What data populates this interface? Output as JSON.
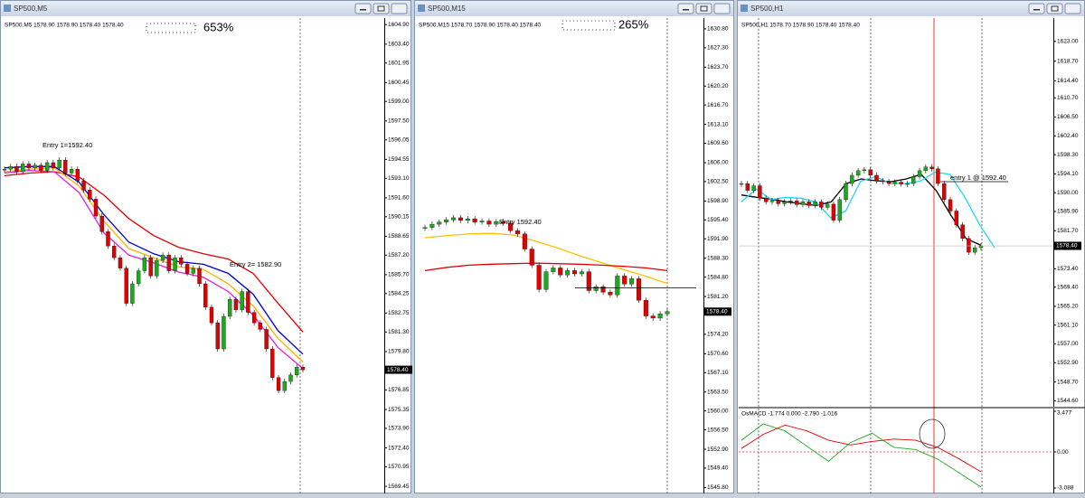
{
  "windows": [
    {
      "title": "SP500,M5",
      "info": "SP500,M5  1578.90 1578.90 1578.40 1578.40",
      "percent": "653%",
      "annotations": [
        "Entry 1=1592.40",
        "Entry 2= 1582.90"
      ],
      "chart": {
        "type": "candlestick",
        "ylim": [
          1568.9,
          1605.4
        ],
        "yticks": [
          {
            "value": 1604.9,
            "label": "1604.90"
          },
          {
            "value": 1603.4,
            "label": "1603.40"
          },
          1601.95,
          1600.45,
          {
            "value": 1599,
            "label": "1599.00"
          },
          {
            "value": 1597.5,
            "label": "1597.50"
          },
          1596.05,
          1594.55,
          {
            "value": 1593.1,
            "label": "1593.10"
          },
          {
            "value": 1591.6,
            "label": "1591.60"
          },
          1590.15,
          1588.65,
          {
            "value": 1587.2,
            "label": "1587.20"
          },
          {
            "value": 1585.7,
            "label": "1585.70"
          },
          1584.25,
          1582.75,
          {
            "value": 1581.3,
            "label": "1581.30"
          },
          {
            "value": 1579.8,
            "label": "1579.80"
          },
          1576.85,
          1575.35,
          {
            "value": 1573.9,
            "label": "1573.90"
          },
          {
            "value": 1572.4,
            "label": "1572.40"
          },
          1570.95,
          1569.45
        ],
        "current": {
          "value": 1578.4,
          "label": "1578.40"
        },
        "closes": [
          1593.8,
          1594.0,
          1593.6,
          1594.2,
          1593.9,
          1594.1,
          1593.7,
          1594.3,
          1593.9,
          1594.5,
          1593.5,
          1593.8,
          1592.9,
          1592.2,
          1591.5,
          1590.2,
          1589.0,
          1587.9,
          1587.0,
          1586.2,
          1583.5,
          1585.0,
          1586.0,
          1587.0,
          1585.6,
          1586.8,
          1587.2,
          1586.0,
          1587.0,
          1586.5,
          1585.8,
          1586.2,
          1585.0,
          1583.2,
          1582.0,
          1580.0,
          1582.5,
          1583.8,
          1583.0,
          1584.4,
          1582.8,
          1582.0,
          1581.5,
          1580.0,
          1577.8,
          1576.8,
          1577.5,
          1578.0,
          1578.6,
          1578.4
        ],
        "ma": [
          {
            "color": "#e00000",
            "values": [
              1593.3,
              1593.5,
              1593.6,
              1593.2,
              1591.8,
              1590.0,
              1588.7,
              1587.8,
              1587.3,
              1586.9,
              1585.8,
              1583.5,
              1581.3
            ]
          },
          {
            "color": "#0000cc",
            "values": [
              1593.9,
              1594.0,
              1594.0,
              1592.8,
              1590.3,
              1588.2,
              1587.3,
              1586.7,
              1586.5,
              1585.8,
              1584.2,
              1581.4,
              1579.6
            ]
          },
          {
            "color": "#ffb000",
            "values": [
              1593.6,
              1593.8,
              1593.9,
              1592.5,
              1589.8,
              1587.7,
              1587.0,
              1586.3,
              1586.1,
              1585.0,
              1583.3,
              1580.8,
              1579.0
            ]
          },
          {
            "color": "#e020e0",
            "values": [
              1593.5,
              1593.7,
              1593.6,
              1592.0,
              1588.9,
              1587.2,
              1586.6,
              1585.9,
              1585.5,
              1584.4,
              1582.6,
              1580.1,
              1578.5
            ]
          }
        ]
      }
    },
    {
      "title": "SP500,M15",
      "info": "SP500,M15  1578.70 1578.90 1578.40 1578.40",
      "percent": "265%",
      "annotations": [
        "Entry 1592.40"
      ],
      "chart": {
        "type": "candlestick",
        "ylim": [
          1544.7,
          1632.8
        ],
        "yticks": [
          {
            "value": 1630.8,
            "label": "1630.80"
          },
          {
            "value": 1627.3,
            "label": "1627.30"
          },
          {
            "value": 1623.7,
            "label": "1623.70"
          },
          {
            "value": 1620.2,
            "label": "1620.20"
          },
          {
            "value": 1616.7,
            "label": "1616.70"
          },
          {
            "value": 1613.1,
            "label": "1613.10"
          },
          {
            "value": 1609.6,
            "label": "1609.60"
          },
          {
            "value": 1606,
            "label": "1606.00"
          },
          {
            "value": 1602.5,
            "label": "1602.50"
          },
          {
            "value": 1598.9,
            "label": "1598.90"
          },
          {
            "value": 1595.4,
            "label": "1595.40"
          },
          {
            "value": 1591.9,
            "label": "1591.90"
          },
          {
            "value": 1588.3,
            "label": "1588.30"
          },
          {
            "value": 1584.8,
            "label": "1584.80"
          },
          {
            "value": 1581.2,
            "label": "1581.20"
          },
          {
            "value": 1574.2,
            "label": "1574.20"
          },
          {
            "value": 1570.6,
            "label": "1570.60"
          },
          {
            "value": 1567.1,
            "label": "1567.10"
          },
          {
            "value": 1563.5,
            "label": "1563.50"
          },
          {
            "value": 1560,
            "label": "1560.00"
          },
          {
            "value": 1556.5,
            "label": "1556.50"
          },
          {
            "value": 1552.9,
            "label": "1552.90"
          },
          {
            "value": 1549.4,
            "label": "1549.40"
          },
          {
            "value": 1545.8,
            "label": "1545.80"
          }
        ],
        "current": {
          "value": 1578.4,
          "label": "1578.40"
        },
        "closes": [
          1594.0,
          1594.6,
          1595.0,
          1595.4,
          1595.8,
          1595.3,
          1595.6,
          1595.0,
          1595.2,
          1594.6,
          1595.1,
          1594.8,
          1593.4,
          1592.8,
          1590.0,
          1587.0,
          1582.5,
          1585.8,
          1586.5,
          1585.2,
          1586.0,
          1585.4,
          1585.8,
          1582.3,
          1583.0,
          1582.0,
          1581.5,
          1585.0,
          1583.5,
          1584.5,
          1580.5,
          1577.6,
          1577.2,
          1578.0,
          1578.4
        ],
        "ma": [
          {
            "color": "#ffc000",
            "values": [
              1592.1,
              1592.5,
              1592.8,
              1592.9,
              1592.6,
              1591.5,
              1590.2,
              1588.8,
              1587.5,
              1586.2,
              1585.0,
              1583.6
            ]
          },
          {
            "color": "#e00000",
            "values": [
              1586.0,
              1586.6,
              1587.0,
              1587.2,
              1587.3,
              1587.4,
              1587.3,
              1587.2,
              1587.0,
              1586.8,
              1586.5,
              1586.0
            ]
          }
        ],
        "level": 1582.8
      }
    },
    {
      "title": "SP500,H1",
      "info": "SP500,H1  1578.70 1578.90 1578.40 1578.40",
      "annotations": [
        "entry 1 @ 1592.40"
      ],
      "chart": {
        "type": "candlestick",
        "ylim": [
          1543.3,
          1628.1
        ],
        "yticks": [
          {
            "value": 1623,
            "label": "1623.00"
          },
          {
            "value": 1618.7,
            "label": "1618.70"
          },
          {
            "value": 1614.4,
            "label": "1614.40"
          },
          {
            "value": 1610.7,
            "label": "1610.70"
          },
          {
            "value": 1606.5,
            "label": "1606.50"
          },
          {
            "value": 1602.4,
            "label": "1602.40"
          },
          {
            "value": 1598.3,
            "label": "1598.30"
          },
          {
            "value": 1594.1,
            "label": "1594.10"
          },
          {
            "value": 1590,
            "label": "1590.00"
          },
          {
            "value": 1585.9,
            "label": "1585.90"
          },
          {
            "value": 1581.7,
            "label": "1581.70"
          },
          {
            "value": 1573.4,
            "label": "1573.40"
          },
          {
            "value": 1569.4,
            "label": "1569.40"
          },
          {
            "value": 1565.2,
            "label": "1565.20"
          },
          {
            "value": 1561.1,
            "label": "1561.10"
          },
          {
            "value": 1557,
            "label": "1557.00"
          },
          {
            "value": 1552.9,
            "label": "1552.90"
          },
          {
            "value": 1548.7,
            "label": "1548.70"
          },
          {
            "value": 1544.6,
            "label": "1544.60"
          }
        ],
        "current": {
          "value": 1578.4,
          "label": "1578.40"
        },
        "closes": [
          1592.0,
          1590.5,
          1591.5,
          1588.8,
          1588.0,
          1588.3,
          1587.6,
          1588.0,
          1588.2,
          1587.4,
          1588.0,
          1587.2,
          1588.0,
          1586.8,
          1587.5,
          1584.0,
          1588.5,
          1592.0,
          1593.8,
          1594.8,
          1595.0,
          1593.8,
          1592.6,
          1592.4,
          1592.0,
          1592.3,
          1591.9,
          1592.0,
          1593.5,
          1594.8,
          1595.6,
          1595.2,
          1592.0,
          1588.5,
          1586.0,
          1583.0,
          1580.0,
          1577.0,
          1578.0,
          1578.4
        ],
        "ma": [
          {
            "color": "#000000",
            "values": [
              1589.5,
              1589.0,
              1588.6,
              1588.0,
              1587.6,
              1587.2,
              1588.0,
              1592.0,
              1593.0,
              1592.6,
              1592.4,
              1593.0,
              1594.0,
              1590.5,
              1585.0,
              1580.0,
              1578.5
            ]
          },
          {
            "color": "#20d8f0",
            "values": [
              1588.0,
              1590.8,
              1588.5,
              1589.0,
              1588.8,
              1588.0,
              1584.5,
              1586.0,
              1592.5,
              1593.5,
              1592.0,
              1592.0,
              1592.5,
              1594.5,
              1594.0,
              1589.0,
              1583.0,
              1578.0
            ]
          }
        ],
        "level": 1592.4
      },
      "macd": {
        "type": "line",
        "label": "OsMACD -1.774 0.000 -2.790 -1.016",
        "ylim": [
          -3.55,
          3.71
        ],
        "yticks": [
          3.477,
          {
            "value": 0,
            "label": "0.00"
          },
          -3.088
        ],
        "series": [
          {
            "color": "#22aa22",
            "values": [
              1.0,
              2.4,
              1.8,
              0.5,
              -0.8,
              0.8,
              1.6,
              0.4,
              0.2,
              -0.6,
              -1.8,
              -3.0
            ]
          },
          {
            "color": "#dd0000",
            "values": [
              0.3,
              1.5,
              2.3,
              1.8,
              1.0,
              0.6,
              0.9,
              1.1,
              1.0,
              0.4,
              -0.6,
              -1.7
            ]
          }
        ]
      }
    }
  ]
}
